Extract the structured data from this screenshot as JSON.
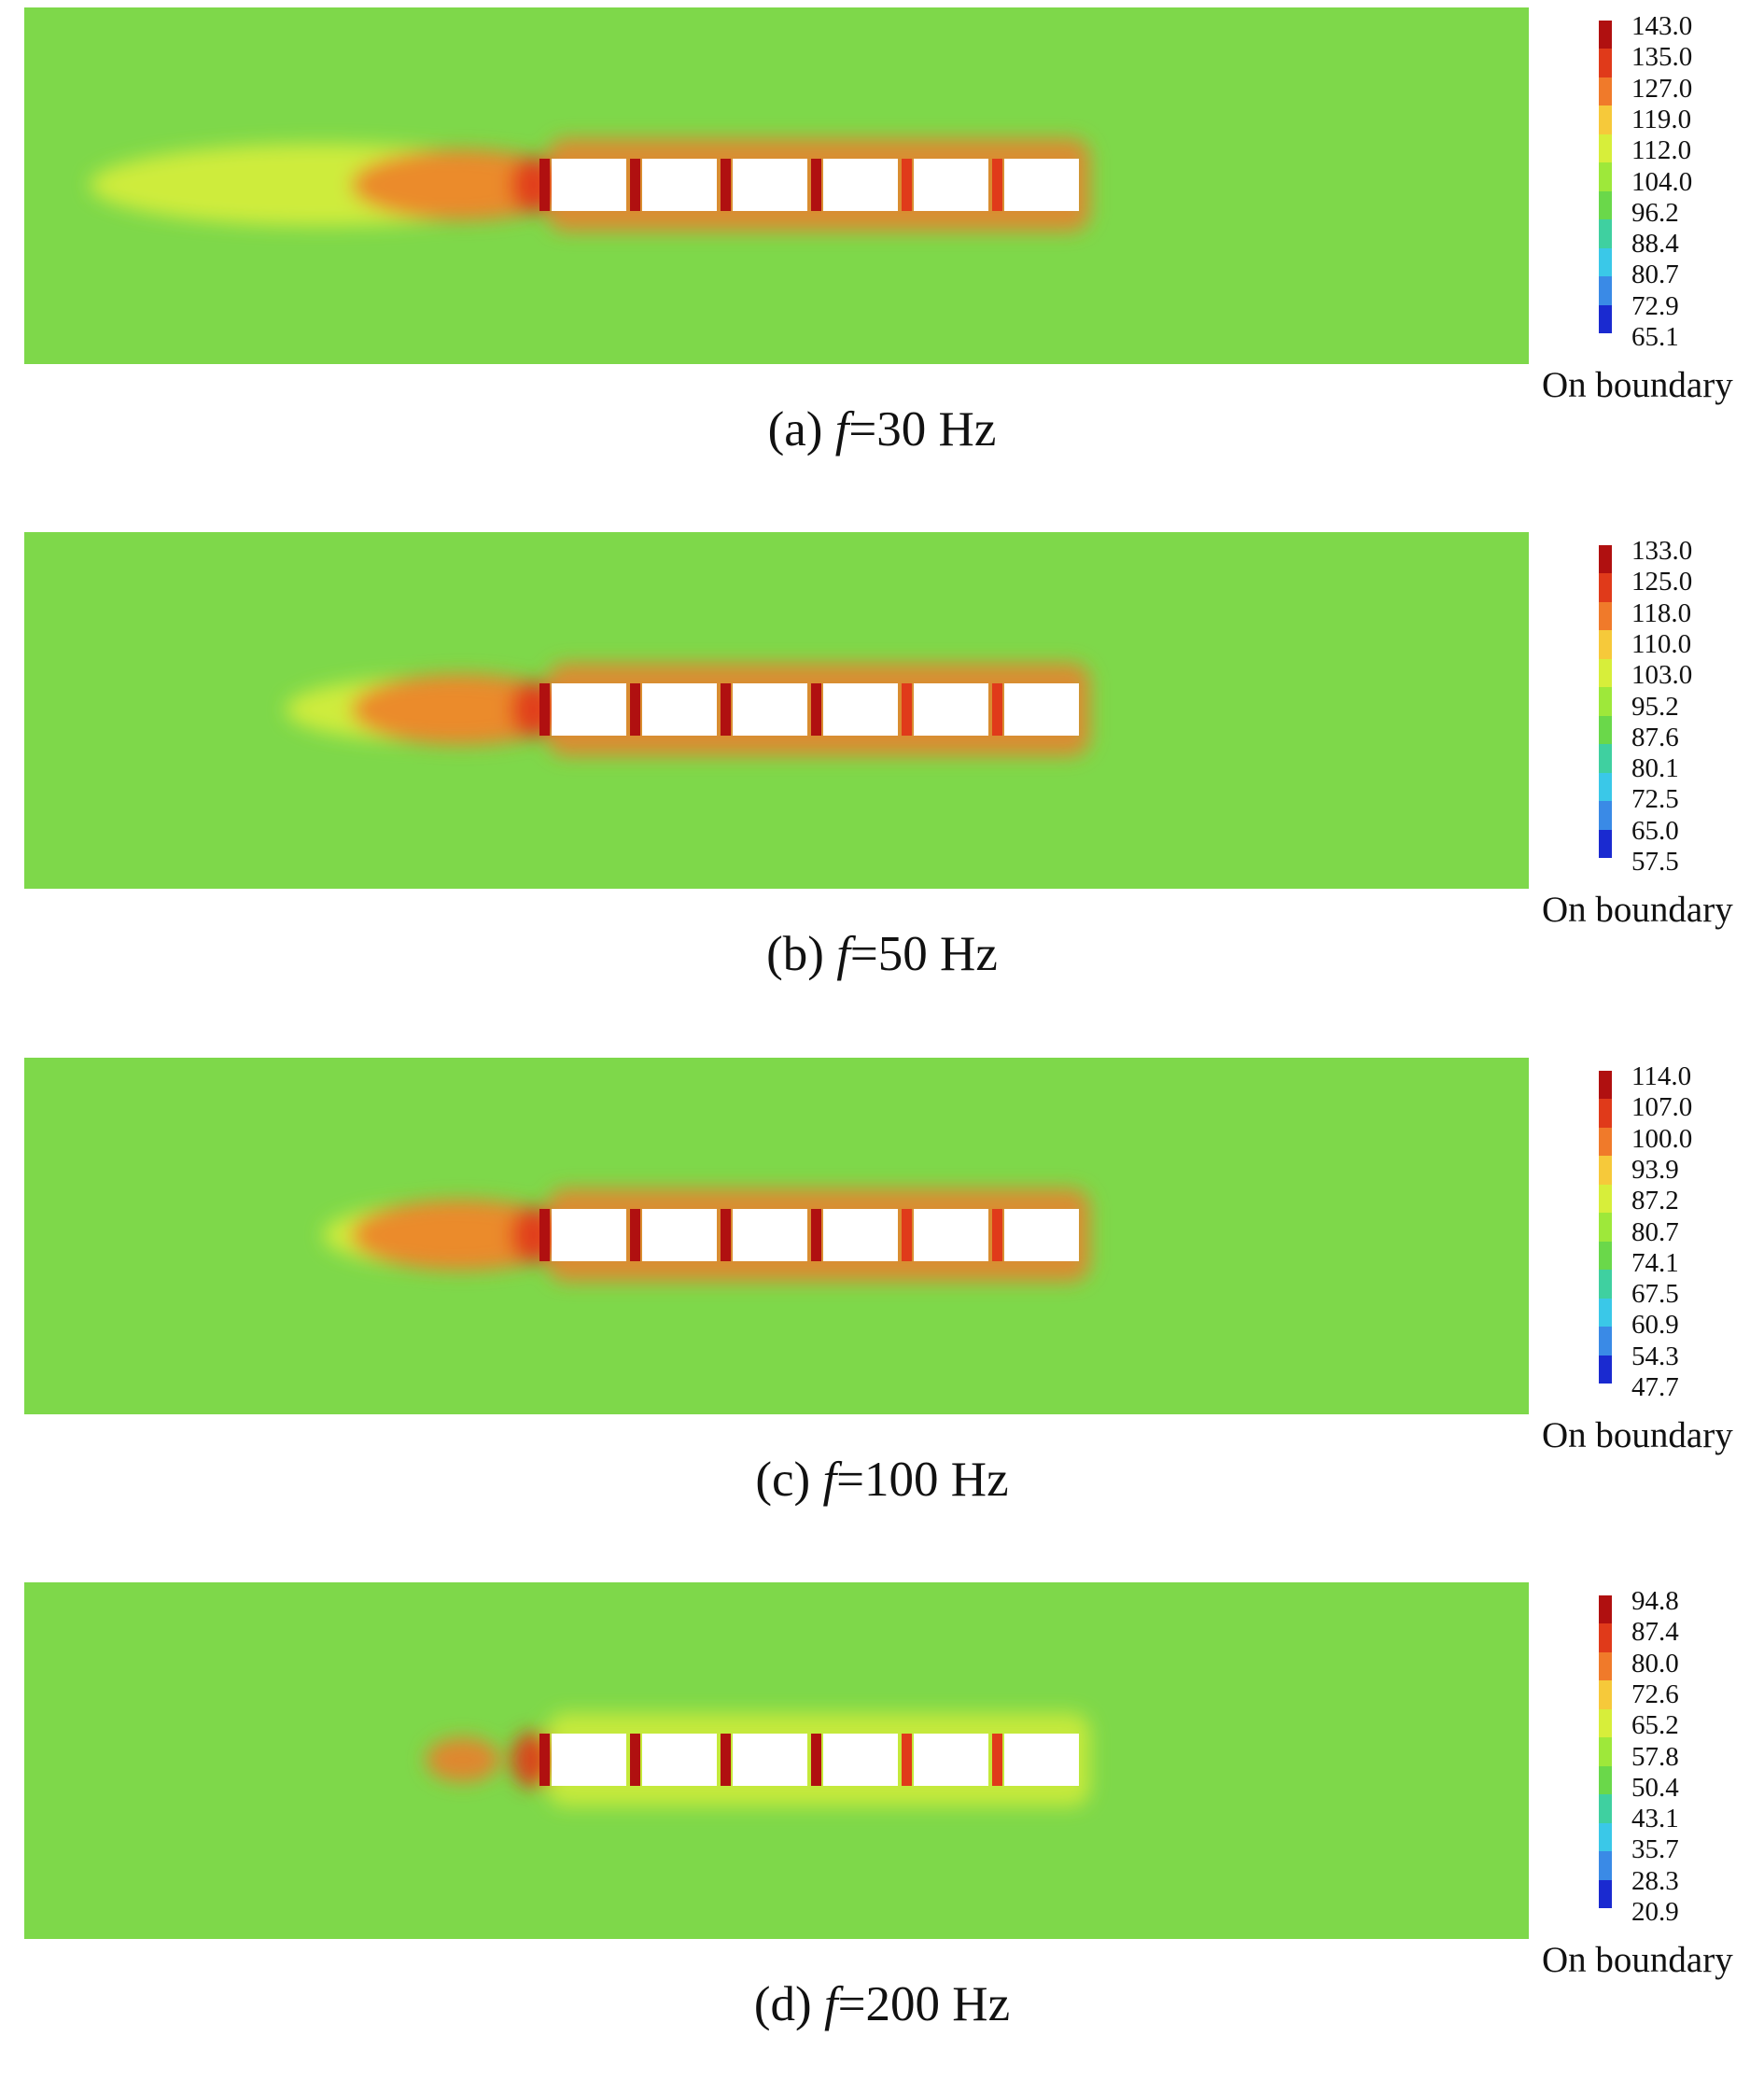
{
  "chart_data": [
    {
      "type": "heatmap",
      "caption": {
        "prefix": "(a)",
        "var": "f",
        "value": "=30 Hz"
      },
      "legend_title": "On boundary",
      "legend_ticks": [
        "143.0",
        "135.0",
        "127.0",
        "119.0",
        "112.0",
        "104.0",
        "96.2",
        "88.4",
        "80.7",
        "72.9",
        "65.1"
      ],
      "range": [
        65.1,
        143.0
      ],
      "obstacle_count": 6
    },
    {
      "type": "heatmap",
      "caption": {
        "prefix": "(b)",
        "var": "f",
        "value": "=50 Hz"
      },
      "legend_title": "On boundary",
      "legend_ticks": [
        "133.0",
        "125.0",
        "118.0",
        "110.0",
        "103.0",
        "95.2",
        "87.6",
        "80.1",
        "72.5",
        "65.0",
        "57.5"
      ],
      "range": [
        57.5,
        133.0
      ],
      "obstacle_count": 6
    },
    {
      "type": "heatmap",
      "caption": {
        "prefix": "(c)",
        "var": "f",
        "value": "=100 Hz"
      },
      "legend_title": "On boundary",
      "legend_ticks": [
        "114.0",
        "107.0",
        "100.0",
        "93.9",
        "87.2",
        "80.7",
        "74.1",
        "67.5",
        "60.9",
        "54.3",
        "47.7"
      ],
      "range": [
        47.7,
        114.0
      ],
      "obstacle_count": 6
    },
    {
      "type": "heatmap",
      "caption": {
        "prefix": "(d)",
        "var": "f",
        "value": "=200 Hz"
      },
      "legend_title": "On boundary",
      "legend_ticks": [
        "94.8",
        "87.4",
        "80.0",
        "72.6",
        "65.2",
        "57.8",
        "50.4",
        "43.1",
        "35.7",
        "28.3",
        "20.9"
      ],
      "range": [
        20.9,
        94.8
      ],
      "obstacle_count": 6
    }
  ],
  "colors": {
    "scale": [
      "#b01010",
      "#e03a1a",
      "#f07a2a",
      "#f6c93a",
      "#d7ee3a",
      "#9ee83a",
      "#6ad84a",
      "#3fd0a0",
      "#3ac8e8",
      "#3a8ae6",
      "#1a2ad0"
    ],
    "field": "#7ed84a",
    "obstacle": "#ffffff"
  }
}
